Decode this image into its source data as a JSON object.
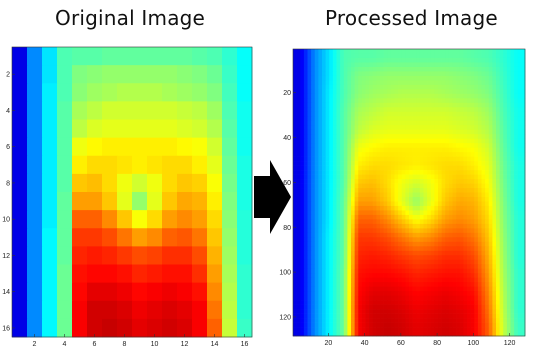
{
  "chart_data": [
    {
      "type": "heatmap",
      "title": "Original Image",
      "x_ticks": [
        2,
        4,
        6,
        8,
        10,
        12,
        14,
        16
      ],
      "y_ticks": [
        2,
        4,
        6,
        8,
        10,
        12,
        14,
        16
      ],
      "xlim": [
        0.5,
        16.5
      ],
      "ylim": [
        0.5,
        16.5
      ],
      "y_direction": "reversed",
      "grid": false,
      "colormap": "jet",
      "value_range": [
        0,
        1
      ],
      "rows": 16,
      "cols": 16,
      "values": [
        [
          0.1,
          0.26,
          0.35,
          0.45,
          0.46,
          0.46,
          0.47,
          0.47,
          0.47,
          0.47,
          0.47,
          0.47,
          0.46,
          0.45,
          0.42,
          0.38
        ],
        [
          0.1,
          0.26,
          0.35,
          0.45,
          0.5,
          0.51,
          0.52,
          0.52,
          0.52,
          0.52,
          0.52,
          0.51,
          0.5,
          0.48,
          0.43,
          0.38
        ],
        [
          0.1,
          0.26,
          0.36,
          0.45,
          0.51,
          0.53,
          0.54,
          0.55,
          0.55,
          0.55,
          0.54,
          0.53,
          0.52,
          0.5,
          0.44,
          0.38
        ],
        [
          0.1,
          0.26,
          0.36,
          0.46,
          0.54,
          0.56,
          0.58,
          0.58,
          0.58,
          0.58,
          0.58,
          0.57,
          0.56,
          0.53,
          0.45,
          0.39
        ],
        [
          0.1,
          0.26,
          0.36,
          0.46,
          0.56,
          0.59,
          0.6,
          0.6,
          0.6,
          0.6,
          0.6,
          0.59,
          0.58,
          0.55,
          0.46,
          0.39
        ],
        [
          0.1,
          0.26,
          0.36,
          0.46,
          0.61,
          0.63,
          0.64,
          0.64,
          0.64,
          0.64,
          0.64,
          0.63,
          0.62,
          0.58,
          0.47,
          0.39
        ],
        [
          0.1,
          0.26,
          0.36,
          0.46,
          0.64,
          0.66,
          0.66,
          0.65,
          0.64,
          0.65,
          0.66,
          0.66,
          0.64,
          0.6,
          0.48,
          0.4
        ],
        [
          0.1,
          0.26,
          0.36,
          0.46,
          0.68,
          0.69,
          0.66,
          0.61,
          0.58,
          0.61,
          0.66,
          0.68,
          0.67,
          0.62,
          0.49,
          0.4
        ],
        [
          0.1,
          0.26,
          0.36,
          0.47,
          0.72,
          0.72,
          0.68,
          0.6,
          0.52,
          0.6,
          0.68,
          0.71,
          0.7,
          0.64,
          0.5,
          0.4
        ],
        [
          0.1,
          0.26,
          0.36,
          0.47,
          0.78,
          0.78,
          0.74,
          0.68,
          0.62,
          0.66,
          0.72,
          0.74,
          0.72,
          0.66,
          0.51,
          0.41
        ],
        [
          0.1,
          0.26,
          0.37,
          0.47,
          0.82,
          0.82,
          0.8,
          0.76,
          0.72,
          0.74,
          0.78,
          0.79,
          0.76,
          0.68,
          0.52,
          0.41
        ],
        [
          0.1,
          0.26,
          0.37,
          0.47,
          0.84,
          0.85,
          0.84,
          0.82,
          0.8,
          0.81,
          0.83,
          0.83,
          0.8,
          0.7,
          0.53,
          0.41
        ],
        [
          0.1,
          0.26,
          0.37,
          0.48,
          0.86,
          0.87,
          0.87,
          0.86,
          0.84,
          0.85,
          0.86,
          0.86,
          0.83,
          0.72,
          0.54,
          0.42
        ],
        [
          0.1,
          0.26,
          0.37,
          0.48,
          0.87,
          0.9,
          0.9,
          0.89,
          0.87,
          0.88,
          0.89,
          0.88,
          0.86,
          0.74,
          0.55,
          0.42
        ],
        [
          0.1,
          0.26,
          0.37,
          0.48,
          0.88,
          0.92,
          0.92,
          0.91,
          0.89,
          0.9,
          0.91,
          0.9,
          0.88,
          0.76,
          0.56,
          0.42
        ],
        [
          0.1,
          0.26,
          0.37,
          0.48,
          0.88,
          0.92,
          0.93,
          0.92,
          0.9,
          0.91,
          0.92,
          0.91,
          0.88,
          0.78,
          0.57,
          0.43
        ]
      ]
    },
    {
      "type": "heatmap",
      "title": "Processed Image",
      "x_ticks": [
        20,
        40,
        60,
        80,
        100,
        120
      ],
      "y_ticks": [
        20,
        40,
        60,
        80,
        100,
        120
      ],
      "xlim": [
        0.5,
        128.5
      ],
      "ylim": [
        0.5,
        128.5
      ],
      "y_direction": "reversed",
      "grid": false,
      "colormap": "jet",
      "value_range": [
        0,
        1
      ],
      "note_source": "bilinear interpolation of Original Image to 128x128"
    }
  ]
}
